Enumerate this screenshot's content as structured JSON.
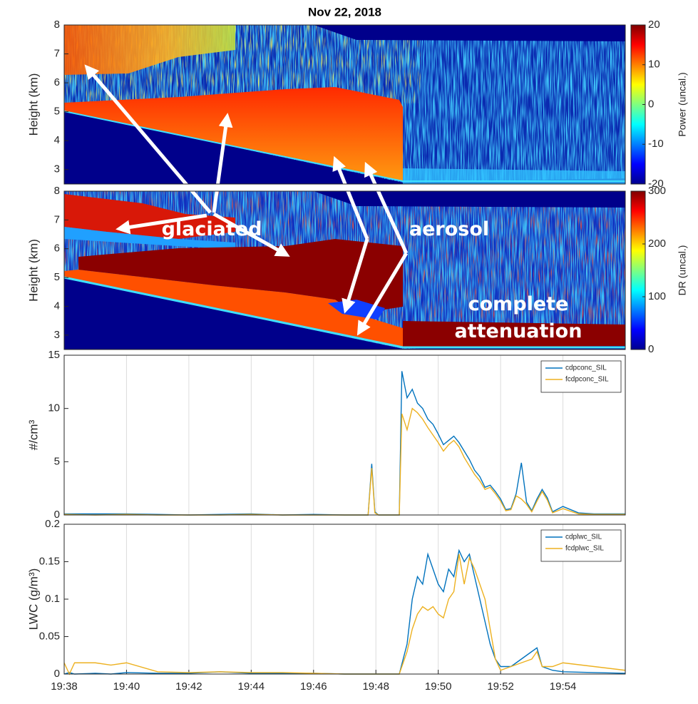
{
  "annotations": [
    "glaciated",
    "aerosol",
    "complete attenuation"
  ],
  "chart_data": [
    {
      "type": "heatmap",
      "title": "Nov 22, 2018",
      "ylabel": "Height (km)",
      "ylim": [
        2.5,
        8
      ],
      "yticks": [
        3,
        4,
        5,
        6,
        7,
        8
      ],
      "colorbar": {
        "label": "Power (uncal.)",
        "lim": [
          -20,
          20
        ],
        "ticks": [
          -20,
          -10,
          0,
          10,
          20
        ]
      }
    },
    {
      "type": "heatmap",
      "ylabel": "Height (km)",
      "ylim": [
        2.5,
        8
      ],
      "yticks": [
        3,
        4,
        5,
        6,
        7,
        8
      ],
      "colorbar": {
        "label": "DR (uncal.)",
        "lim": [
          0,
          300
        ],
        "ticks": [
          0,
          100,
          200,
          300
        ]
      }
    },
    {
      "type": "line",
      "ylabel": "#/cm³",
      "xlim": [
        "19:38",
        "19:56"
      ],
      "ylim": [
        0,
        15
      ],
      "yticks": [
        0,
        5,
        10,
        15
      ],
      "xgrid": true,
      "legend": "upper right",
      "x": [
        "19:38:00",
        "19:39:00",
        "19:40:00",
        "19:41:00",
        "19:42:00",
        "19:43:00",
        "19:44:00",
        "19:45:00",
        "19:46:00",
        "19:47:00",
        "19:47:45",
        "19:47:52",
        "19:47:58",
        "19:48:05",
        "19:48:45",
        "19:48:50",
        "19:49:00",
        "19:49:10",
        "19:49:20",
        "19:49:30",
        "19:49:40",
        "19:49:50",
        "19:50:00",
        "19:50:10",
        "19:50:20",
        "19:50:30",
        "19:50:40",
        "19:50:50",
        "19:51:00",
        "19:51:10",
        "19:51:20",
        "19:51:30",
        "19:51:40",
        "19:51:50",
        "19:52:00",
        "19:52:10",
        "19:52:20",
        "19:52:30",
        "19:52:40",
        "19:52:50",
        "19:53:00",
        "19:53:10",
        "19:53:20",
        "19:53:30",
        "19:53:40",
        "19:54:00",
        "19:54:30",
        "19:55:00",
        "19:56:00"
      ],
      "series": [
        {
          "name": "cdpconc_SIL",
          "color": "#0072bd",
          "values": [
            0.1,
            0.1,
            0.1,
            0.05,
            0,
            0.05,
            0.1,
            0,
            0.05,
            0,
            0,
            4.8,
            0.3,
            0,
            0,
            13.5,
            11,
            11.8,
            10.5,
            10,
            9,
            8.5,
            7.6,
            6.6,
            7,
            7.4,
            6.8,
            6,
            5.2,
            4.2,
            3.6,
            2.6,
            2.8,
            2.2,
            1.5,
            0.5,
            0.6,
            2,
            4.9,
            1.2,
            0.4,
            1.5,
            2.4,
            1.6,
            0.3,
            0.8,
            0.2,
            0.1,
            0.1
          ]
        },
        {
          "name": "fcdpconc_SIL",
          "color": "#edb120",
          "values": [
            0.05,
            0,
            0.05,
            0,
            0,
            0,
            0.05,
            0,
            0,
            0,
            0,
            4.4,
            0.2,
            0,
            0,
            9.5,
            8,
            10,
            9.6,
            9,
            8.2,
            7.5,
            6.8,
            6,
            6.6,
            7,
            6.4,
            5.4,
            4.6,
            3.8,
            3.2,
            2.4,
            2.6,
            2,
            1.3,
            0.4,
            0.5,
            1.8,
            1.5,
            1,
            0.3,
            1.3,
            2.2,
            1.4,
            0.2,
            0.6,
            0.1,
            0.05,
            0.05
          ]
        }
      ]
    },
    {
      "type": "line",
      "ylabel": "LWC (g/m³)",
      "xlim": [
        "19:38",
        "19:56"
      ],
      "ylim": [
        0,
        0.2
      ],
      "yticks": [
        0,
        0.05,
        0.1,
        0.15,
        0.2
      ],
      "xgrid": true,
      "legend": "upper right",
      "xticks": [
        "19:38",
        "19:40",
        "19:42",
        "19:44",
        "19:46",
        "19:48",
        "19:50",
        "19:52",
        "19:54"
      ],
      "x": [
        "19:38:00",
        "19:38:10",
        "19:38:20",
        "19:39:00",
        "19:39:30",
        "19:40:00",
        "19:41:00",
        "19:42:00",
        "19:43:00",
        "19:44:00",
        "19:45:00",
        "19:46:00",
        "19:47:00",
        "19:48:00",
        "19:48:45",
        "19:49:00",
        "19:49:10",
        "19:49:20",
        "19:49:30",
        "19:49:40",
        "19:49:50",
        "19:50:00",
        "19:50:10",
        "19:50:20",
        "19:50:30",
        "19:50:40",
        "19:50:50",
        "19:51:00",
        "19:51:10",
        "19:51:20",
        "19:51:30",
        "19:51:40",
        "19:51:50",
        "19:52:00",
        "19:52:20",
        "19:52:40",
        "19:53:00",
        "19:53:10",
        "19:53:20",
        "19:53:40",
        "19:54:00",
        "19:55:00",
        "19:56:00"
      ],
      "series": [
        {
          "name": "cdplwc_SIL",
          "color": "#0072bd",
          "values": [
            0,
            0.002,
            0,
            0.001,
            0,
            0.002,
            0.001,
            0.001,
            0.003,
            0.001,
            0.001,
            0.001,
            0,
            0,
            0,
            0.04,
            0.1,
            0.13,
            0.12,
            0.16,
            0.14,
            0.12,
            0.11,
            0.14,
            0.13,
            0.165,
            0.15,
            0.16,
            0.13,
            0.1,
            0.07,
            0.04,
            0.02,
            0.01,
            0.01,
            0.02,
            0.03,
            0.035,
            0.01,
            0.005,
            0.003,
            0.002,
            0.001
          ]
        },
        {
          "name": "fcdplwc_SIL",
          "color": "#edb120",
          "values": [
            0.015,
            0,
            0.015,
            0.015,
            0.012,
            0.015,
            0.003,
            0.002,
            0.003,
            0.002,
            0.002,
            0.001,
            0,
            0,
            0,
            0.03,
            0.06,
            0.08,
            0.09,
            0.085,
            0.09,
            0.08,
            0.075,
            0.1,
            0.11,
            0.16,
            0.12,
            0.155,
            0.14,
            0.12,
            0.1,
            0.06,
            0.02,
            0.005,
            0.01,
            0.015,
            0.02,
            0.03,
            0.01,
            0.01,
            0.015,
            0.01,
            0.005
          ]
        }
      ]
    }
  ]
}
